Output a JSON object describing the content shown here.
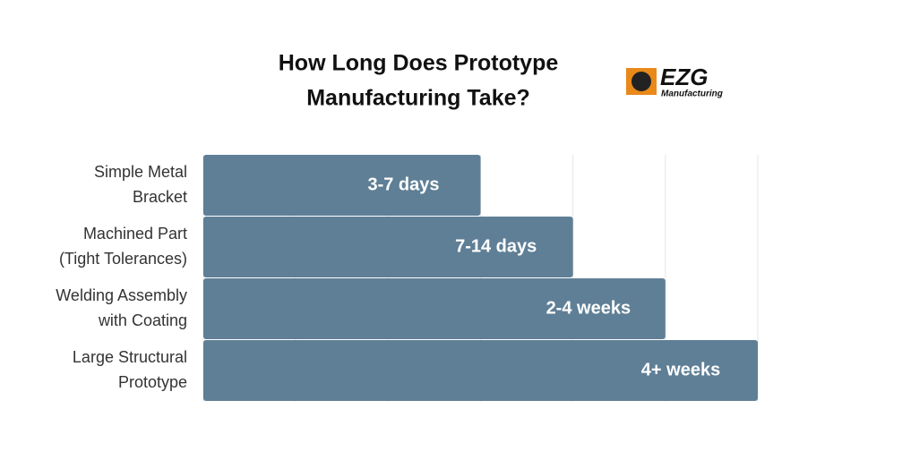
{
  "chart_data": {
    "type": "bar",
    "orientation": "horizontal",
    "title": [
      "How Long Does Prototype",
      "Manufacturing Take?"
    ],
    "logo": {
      "name": "EZG",
      "subtitle": "Manufacturing"
    },
    "categories": [
      [
        "Simple Metal",
        "Bracket"
      ],
      [
        "Machined Part",
        "(Tight Tolerances)"
      ],
      [
        "Welding Assembly",
        "with Coating"
      ],
      [
        "Large Structural",
        "Prototype"
      ]
    ],
    "values": [
      3,
      4,
      5,
      6
    ],
    "value_labels": [
      "3-7 days",
      "7-14 days",
      "2-4 weeks",
      "4+ weeks"
    ],
    "color": "#5f7f96",
    "xlim": [
      0,
      6
    ],
    "xticks": [
      0,
      1,
      2,
      3,
      4,
      5,
      6
    ],
    "grid": true
  }
}
